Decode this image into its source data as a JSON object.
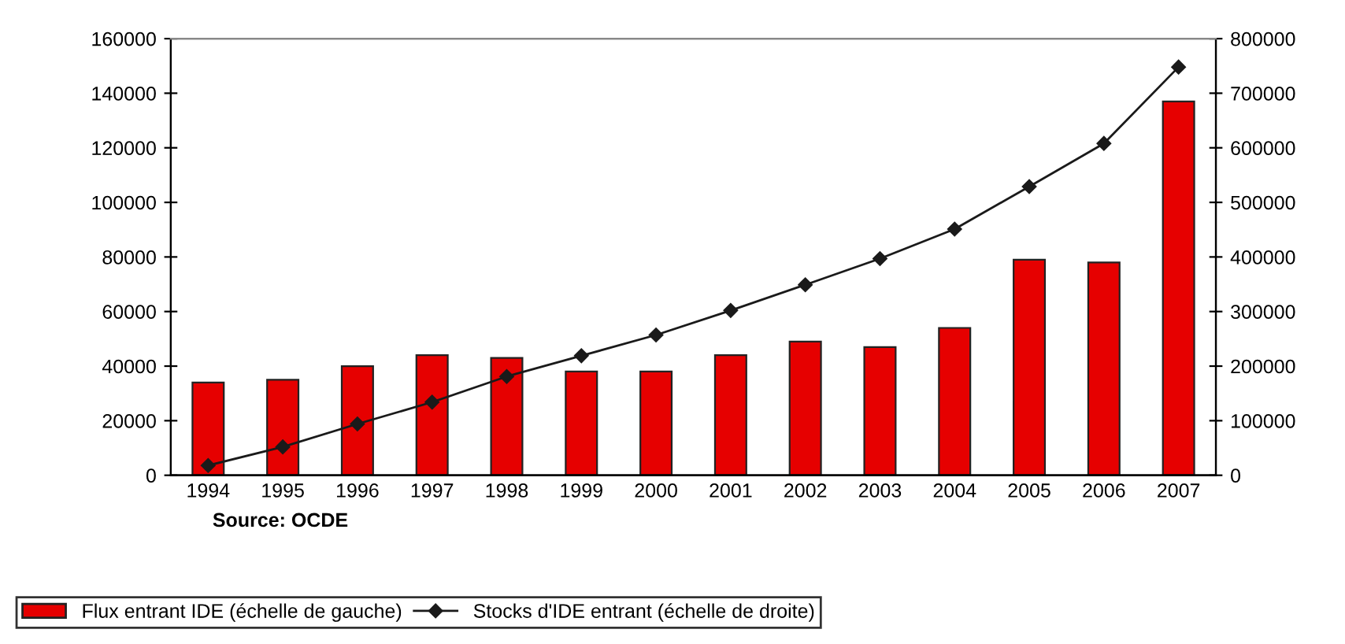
{
  "chart_data": {
    "type": "bar",
    "categories": [
      "1994",
      "1995",
      "1996",
      "1997",
      "1998",
      "1999",
      "2000",
      "2001",
      "2002",
      "2003",
      "2004",
      "2005",
      "2006",
      "2007"
    ],
    "series": [
      {
        "name": "Flux entrant IDE (échelle de gauche)",
        "color": "#e60000",
        "values": [
          34000,
          35000,
          40000,
          44000,
          43000,
          38000,
          38000,
          44000,
          49000,
          47000,
          54000,
          79000,
          78000,
          137000
        ]
      },
      {
        "name": "Stocks d'IDE entrant (échelle de droite)",
        "type": "line",
        "axis": "y2",
        "color": "#1a1a1a",
        "marker": "diamond",
        "values": [
          18000,
          52000,
          94000,
          134000,
          181000,
          219000,
          257000,
          302000,
          349000,
          397000,
          451000,
          529000,
          608000,
          748000
        ]
      }
    ],
    "ylim": [
      0,
      160000
    ],
    "yticks": [
      0,
      20000,
      40000,
      60000,
      80000,
      100000,
      120000,
      140000,
      160000
    ],
    "y2lim": [
      0,
      800000
    ],
    "y2ticks": [
      0,
      100000,
      200000,
      300000,
      400000,
      500000,
      600000,
      700000,
      800000
    ],
    "annotations": [
      "Source: OCDE"
    ],
    "legend": "bottom",
    "grid": false
  }
}
